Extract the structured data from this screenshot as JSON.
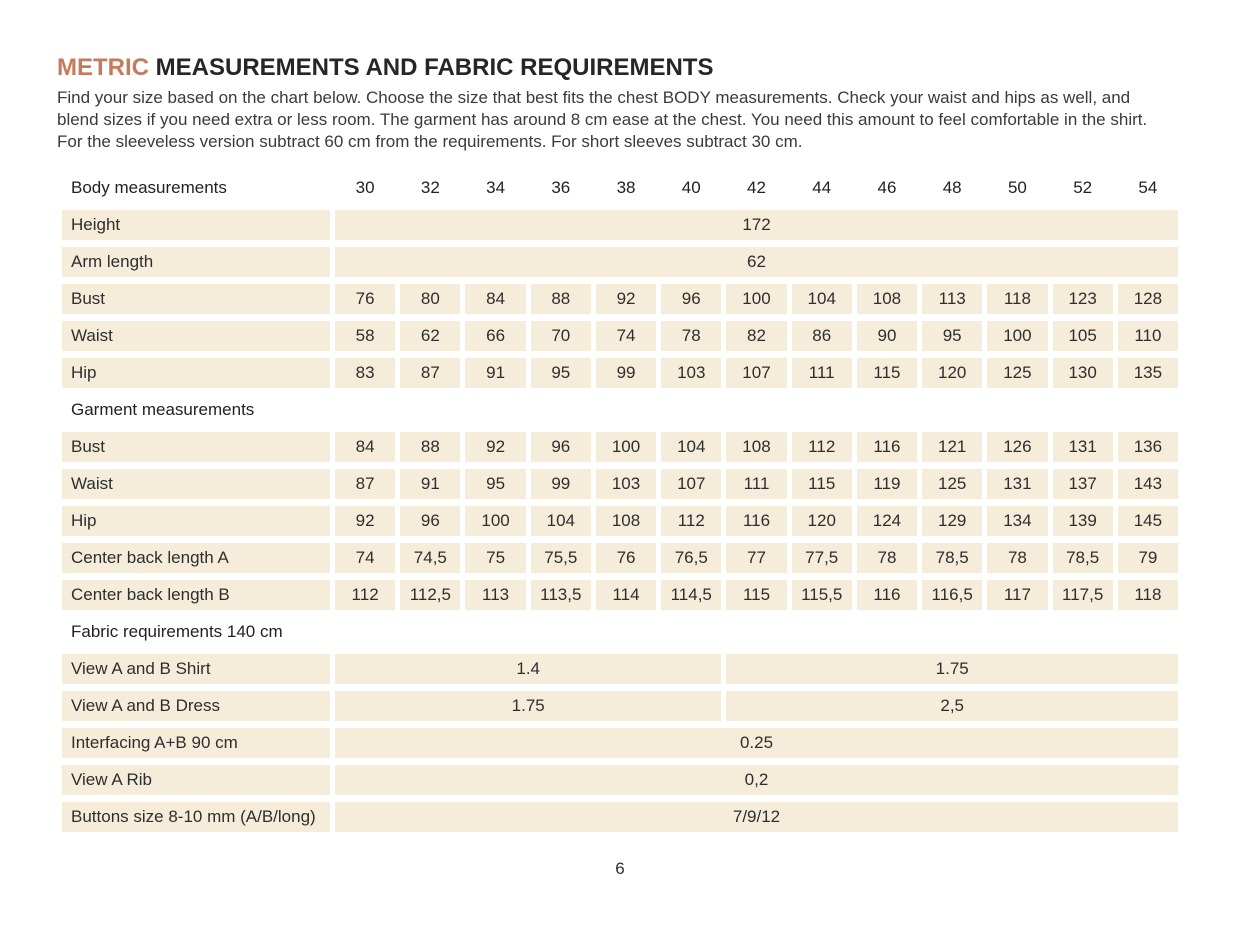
{
  "page": {
    "title_accent": "METRIC",
    "title_rest": " MEASUREMENTS AND FABRIC REQUIREMENTS",
    "intro": "Find your size based on the chart below. Choose the size that best fits the chest BODY measurements.  Check your waist and hips as well, and blend sizes if you need extra or less room. The garment has around 8 cm ease at the chest. You need this amount to feel comfortable in the shirt. For the sleeveless version subtract 60 cm from the requirements. For short sleeves subtract 30 cm.",
    "page_number": "6"
  },
  "colors": {
    "accent": "#c67a5c",
    "cell_background": "#f6ecda",
    "text": "#2e2e2e"
  },
  "table": {
    "header_label": "Body measurements",
    "sizes": [
      "30",
      "32",
      "34",
      "36",
      "38",
      "40",
      "42",
      "44",
      "46",
      "48",
      "50",
      "52",
      "54"
    ],
    "body_rows": [
      {
        "label": "Height",
        "span": "172"
      },
      {
        "label": "Arm length",
        "span": "62"
      },
      {
        "label": "Bust",
        "values": [
          "76",
          "80",
          "84",
          "88",
          "92",
          "96",
          "100",
          "104",
          "108",
          "113",
          "118",
          "123",
          "128"
        ]
      },
      {
        "label": "Waist",
        "values": [
          "58",
          "62",
          "66",
          "70",
          "74",
          "78",
          "82",
          "86",
          "90",
          "95",
          "100",
          "105",
          "110"
        ]
      },
      {
        "label": "Hip",
        "values": [
          "83",
          "87",
          "91",
          "95",
          "99",
          "103",
          "107",
          "111",
          "115",
          "120",
          "125",
          "130",
          "135"
        ]
      }
    ],
    "garment_header": "Garment measurements",
    "garment_rows": [
      {
        "label": "Bust",
        "values": [
          "84",
          "88",
          "92",
          "96",
          "100",
          "104",
          "108",
          "112",
          "116",
          "121",
          "126",
          "131",
          "136"
        ]
      },
      {
        "label": "Waist",
        "values": [
          "87",
          "91",
          "95",
          "99",
          "103",
          "107",
          "111",
          "115",
          "119",
          "125",
          "131",
          "137",
          "143"
        ]
      },
      {
        "label": "Hip",
        "values": [
          "92",
          "96",
          "100",
          "104",
          "108",
          "112",
          "116",
          "120",
          "124",
          "129",
          "134",
          "139",
          "145"
        ]
      },
      {
        "label": "Center back length A",
        "values": [
          "74",
          "74,5",
          "75",
          "75,5",
          "76",
          "76,5",
          "77",
          "77,5",
          "78",
          "78,5",
          "78",
          "78,5",
          "79"
        ]
      },
      {
        "label": "Center back length B",
        "values": [
          "112",
          "112,5",
          "113",
          "113,5",
          "114",
          "114,5",
          "115",
          "115,5",
          "116",
          "116,5",
          "117",
          "117,5",
          "118"
        ]
      }
    ],
    "fabric_header": "Fabric requirements 140 cm",
    "fabric_rows": [
      {
        "label": "View A and B Shirt",
        "left": "1.4",
        "right": "1.75"
      },
      {
        "label": "View A and B Dress",
        "left": "1.75",
        "right": "2,5"
      },
      {
        "label": "Interfacing  A+B 90 cm",
        "span": "0.25"
      },
      {
        "label": "View A Rib",
        "span": "0,2"
      },
      {
        "label": "Buttons size 8-10 mm (A/B/long)",
        "span": "7/9/12"
      }
    ]
  }
}
